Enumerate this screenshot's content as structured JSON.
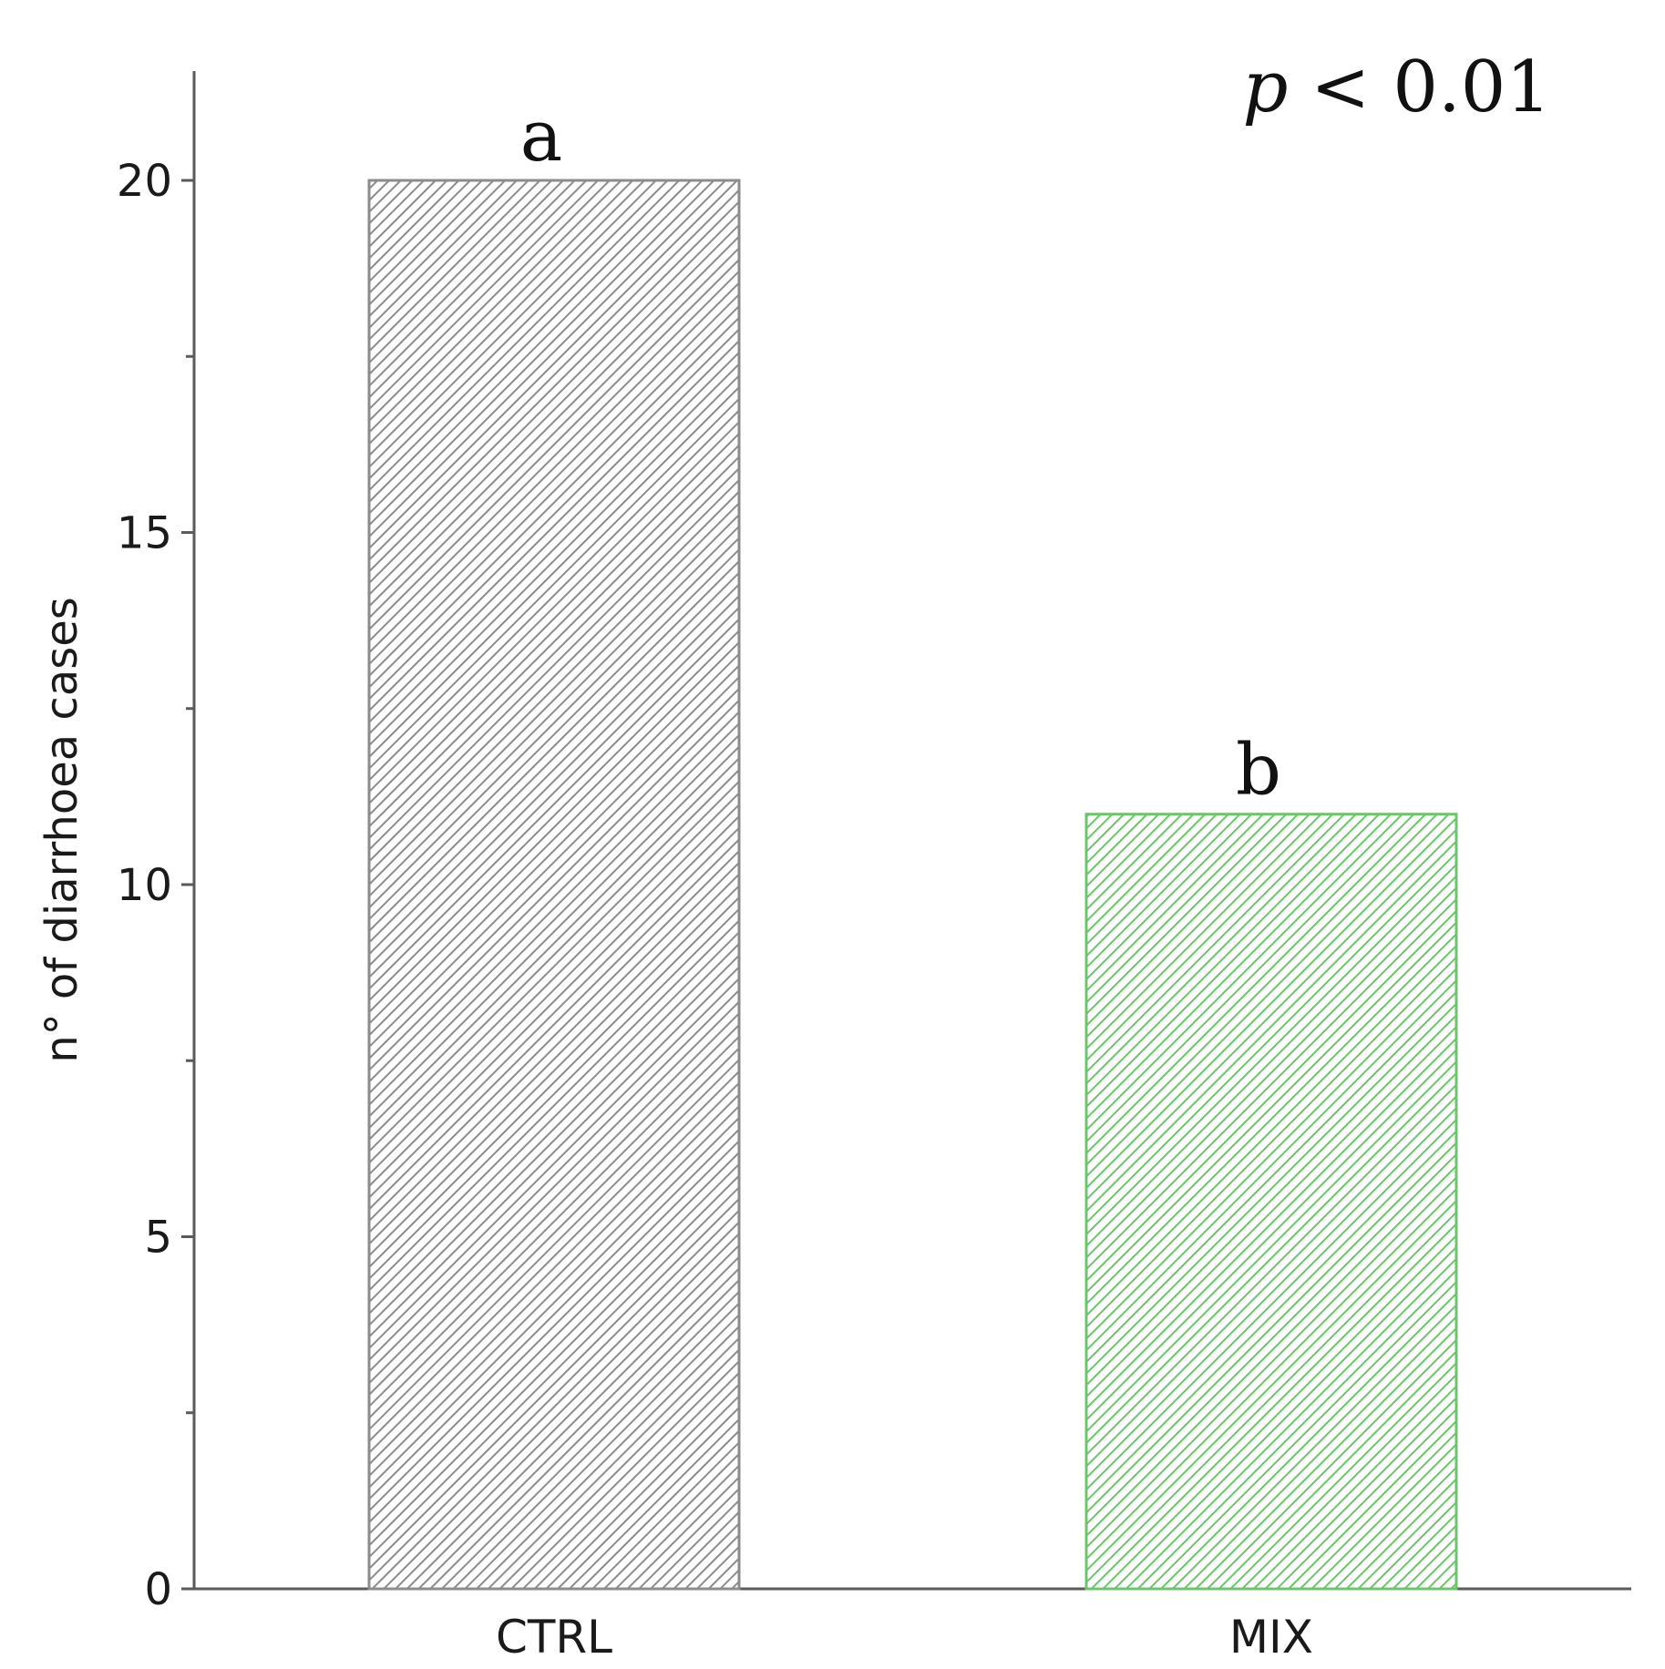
{
  "chart_data": {
    "type": "bar",
    "categories": [
      "CTRL",
      "MIX"
    ],
    "values": [
      20,
      11
    ],
    "ylabel": "n° of diarrhoea cases",
    "xlabel": "",
    "ylim": [
      0,
      21.5
    ],
    "yticks": [
      0,
      5,
      10,
      15,
      20
    ],
    "minor_yticks": [
      2.5,
      7.5,
      12.5,
      17.5
    ],
    "significance_letters": [
      "a",
      "b"
    ],
    "annotation": {
      "p_symbol": "p",
      "rest": " < 0.01"
    },
    "colors": {
      "CTRL": "#8c8c8c",
      "MIX": "#6cc46c"
    },
    "fill_pattern": "diagonal hatch",
    "grid": false
  }
}
